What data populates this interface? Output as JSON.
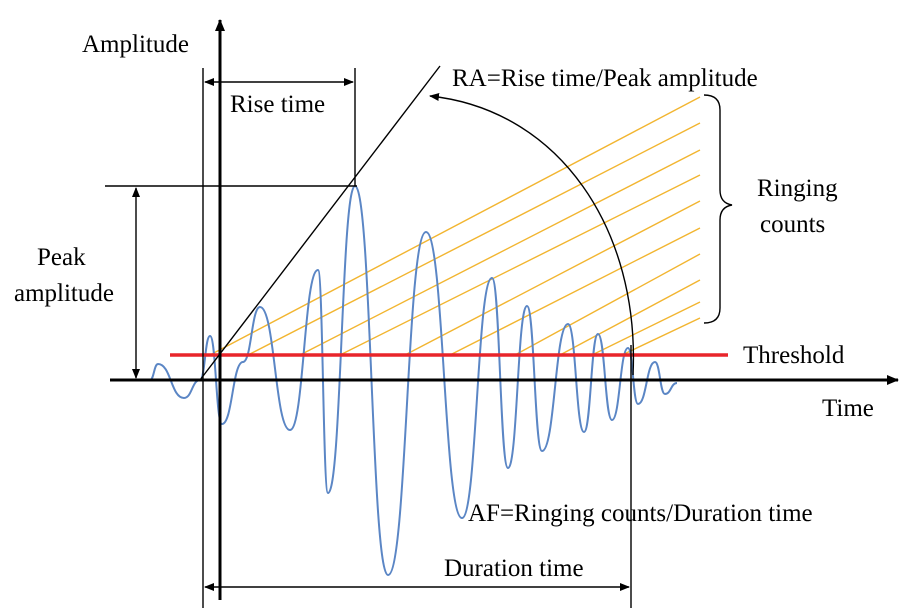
{
  "labels": {
    "amplitude": "Amplitude",
    "time": "Time",
    "rise_time": "Rise time",
    "ra": "RA=Rise time/Peak amplitude",
    "ringing_counts_line1": "Ringing",
    "ringing_counts_line2": "counts",
    "peak_amplitude_line1": "Peak",
    "peak_amplitude_line2": "amplitude",
    "threshold": "Threshold",
    "af": "AF=Ringing counts/Duration time",
    "duration_time": "Duration time"
  },
  "colors": {
    "waveform": "#5b86c5",
    "threshold": "#e8252b",
    "ringing_lines": "#f2b530",
    "axes": "#000000"
  }
}
